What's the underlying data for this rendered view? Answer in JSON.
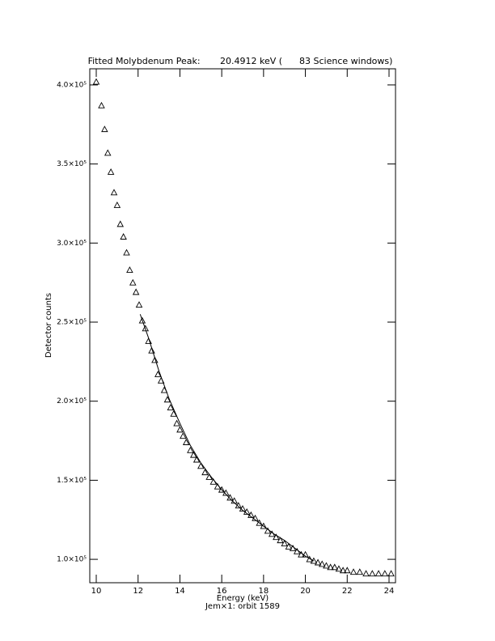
{
  "chart_data": {
    "type": "scatter",
    "title": "Fitted Molybdenum Peak:       20.4912 keV (      83 Science windows)",
    "x_label": "Energy (keV)",
    "subtitle": "Jem×1: orbit 1589",
    "y_label": "Detector counts",
    "xlim": [
      9.69,
      24.31
    ],
    "ylim": [
      85200,
      410200
    ],
    "xticks": [
      10,
      12,
      14,
      16,
      18,
      20,
      22,
      24
    ],
    "yticks": [
      {
        "value": 100000,
        "label": "1.0×10⁵"
      },
      {
        "value": 150000,
        "label": "1.5×10⁵"
      },
      {
        "value": 200000,
        "label": "2.0×10⁵"
      },
      {
        "value": 250000,
        "label": "2.5×10⁵"
      },
      {
        "value": 300000,
        "label": "3.0×10⁵"
      },
      {
        "value": 350000,
        "label": "3.5×10⁵"
      },
      {
        "value": 400000,
        "label": "4.0×10⁵"
      }
    ],
    "series": [
      {
        "mode": "markers",
        "marker": "triangle",
        "color": "#000000",
        "x": [
          10.0,
          10.25,
          10.4,
          10.55,
          10.7,
          10.85,
          11.0,
          11.15,
          11.3,
          11.45,
          11.6,
          11.75,
          11.9,
          12.05,
          12.2,
          12.35,
          12.5,
          12.65,
          12.8,
          12.95,
          13.1,
          13.25,
          13.4,
          13.55,
          13.7,
          13.85,
          14.0,
          14.15,
          14.3,
          14.5,
          14.65,
          14.8,
          15.0,
          15.2,
          15.4,
          15.6,
          15.8,
          16.0,
          16.2,
          16.4,
          16.6,
          16.8,
          17.0,
          17.2,
          17.4,
          17.6,
          17.8,
          18.0,
          18.2,
          18.4,
          18.6,
          18.8,
          19.0,
          19.2,
          19.4,
          19.6,
          19.8,
          20.0,
          20.2,
          20.4,
          20.6,
          20.8,
          21.0,
          21.2,
          21.4,
          21.6,
          21.8,
          22.0,
          22.3,
          22.6,
          22.9,
          23.2,
          23.5,
          23.8,
          24.1
        ],
        "values": [
          402000,
          387000,
          372000,
          357000,
          345000,
          332000,
          324000,
          312000,
          304000,
          294000,
          283000,
          275000,
          269000,
          261000,
          251000,
          246000,
          238000,
          232000,
          226000,
          217000,
          213000,
          207000,
          201000,
          196000,
          192000,
          186000,
          182000,
          178000,
          174000,
          169000,
          166000,
          163000,
          159000,
          155000,
          152000,
          149000,
          146000,
          144000,
          142000,
          139000,
          137000,
          134000,
          132000,
          130000,
          128000,
          126000,
          123000,
          121000,
          118000,
          116000,
          114000,
          112000,
          110000,
          108000,
          107000,
          105000,
          103000,
          103000,
          100000,
          99000,
          98000,
          97000,
          96000,
          95000,
          95000,
          94000,
          93000,
          93000,
          92000,
          92000,
          91000,
          91000,
          91000,
          91000,
          91000
        ]
      },
      {
        "mode": "line",
        "color": "#000000",
        "x": [
          12.1,
          12.5,
          13,
          13.5,
          14,
          14.5,
          15,
          15.5,
          16,
          16.5,
          17,
          17.5,
          18,
          18.5,
          19,
          19.5,
          20,
          20.4
        ],
        "values": [
          255000,
          240000,
          219000,
          201000,
          186000,
          172000,
          161000,
          152000,
          144000,
          137000,
          131000,
          126000,
          121000,
          116000,
          112000,
          107000,
          102000,
          99000
        ]
      }
    ]
  }
}
